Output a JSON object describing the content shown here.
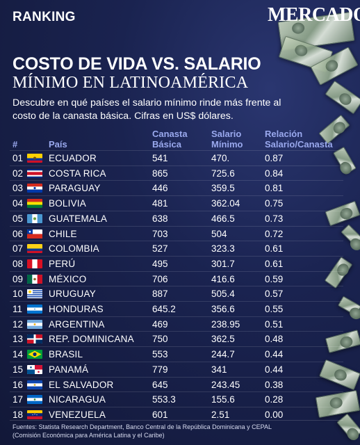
{
  "header": {
    "section": "RANKING",
    "brand": "MERCADO"
  },
  "title": {
    "line1": "COSTO DE VIDA VS. SALARIO",
    "line2": "MÍNIMO EN LATINOAMÉRICA"
  },
  "subtitle": "Descubre en qué países el salario mínimo rinde más frente al costo de la canasta básica. Cifras en US$ dólares.",
  "table": {
    "headers": {
      "num": "#",
      "country": "País",
      "basket": "Canasta Básica",
      "wage": "Salario Mínimo",
      "ratio": "Relación Salario/Canasta"
    }
  },
  "footer": "Fuentes: Statista Research Department, Banco Central de la República Dominicana y CEPAL (Comisión Económica para América Latina y el Caribe)",
  "colors": {
    "background": "#1a2350",
    "header_text": "#9aa9ee",
    "text": "#ffffff"
  },
  "chart_data": {
    "type": "table",
    "columns": [
      "#",
      "País",
      "Canasta Básica",
      "Salario Mínimo",
      "Relación Salario/Canasta"
    ],
    "rows": [
      {
        "num": "01",
        "country": "ECUADOR",
        "flag": "ecuador-flag-icon",
        "basket": "541",
        "wage": "470.",
        "ratio": "0.87"
      },
      {
        "num": "02",
        "country": "COSTA RICA",
        "flag": "costa-rica-flag-icon",
        "basket": "865",
        "wage": "725.6",
        "ratio": "0.84"
      },
      {
        "num": "03",
        "country": "PARAGUAY",
        "flag": "paraguay-flag-icon",
        "basket": "446",
        "wage": "359.5",
        "ratio": "0.81"
      },
      {
        "num": "04",
        "country": "BOLIVIA",
        "flag": "bolivia-flag-icon",
        "basket": "481",
        "wage": "362.04",
        "ratio": "0.75"
      },
      {
        "num": "05",
        "country": "GUATEMALA",
        "flag": "guatemala-flag-icon",
        "basket": "638",
        "wage": "466.5",
        "ratio": "0.73"
      },
      {
        "num": "06",
        "country": "CHILE",
        "flag": "chile-flag-icon",
        "basket": "703",
        "wage": "504",
        "ratio": "0.72"
      },
      {
        "num": "07",
        "country": "COLOMBIA",
        "flag": "colombia-flag-icon",
        "basket": "527",
        "wage": "323.3",
        "ratio": "0.61"
      },
      {
        "num": "08",
        "country": "PERÚ",
        "flag": "peru-flag-icon",
        "basket": "495",
        "wage": "301.7",
        "ratio": "0.61"
      },
      {
        "num": "09",
        "country": "MÉXICO",
        "flag": "mexico-flag-icon",
        "basket": "706",
        "wage": "416.6",
        "ratio": "0.59"
      },
      {
        "num": "10",
        "country": "URUGUAY",
        "flag": "uruguay-flag-icon",
        "basket": "887",
        "wage": "505.4",
        "ratio": "0.57"
      },
      {
        "num": "11",
        "country": "HONDURAS",
        "flag": "honduras-flag-icon",
        "basket": "645.2",
        "wage": "356.6",
        "ratio": "0.55"
      },
      {
        "num": "12",
        "country": "ARGENTINA",
        "flag": "argentina-flag-icon",
        "basket": "469",
        "wage": "238.95",
        "ratio": "0.51"
      },
      {
        "num": "13",
        "country": "REP. DOMINICANA",
        "flag": "dominican-republic-flag-icon",
        "basket": "750",
        "wage": "362.5",
        "ratio": "0.48"
      },
      {
        "num": "14",
        "country": "BRASIL",
        "flag": "brazil-flag-icon",
        "basket": "553",
        "wage": "244.7",
        "ratio": "0.44"
      },
      {
        "num": "15",
        "country": "PANAMÁ",
        "flag": "panama-flag-icon",
        "basket": "779",
        "wage": "341",
        "ratio": "0.44"
      },
      {
        "num": "16",
        "country": "EL SALVADOR",
        "flag": "el-salvador-flag-icon",
        "basket": "645",
        "wage": "243.45",
        "ratio": "0.38"
      },
      {
        "num": "17",
        "country": "NICARAGUA",
        "flag": "nicaragua-flag-icon",
        "basket": "553.3",
        "wage": "155.6",
        "ratio": "0.28"
      },
      {
        "num": "18",
        "country": "VENEZUELA",
        "flag": "venezuela-flag-icon",
        "basket": "601",
        "wage": "2.51",
        "ratio": "0.00"
      }
    ]
  }
}
